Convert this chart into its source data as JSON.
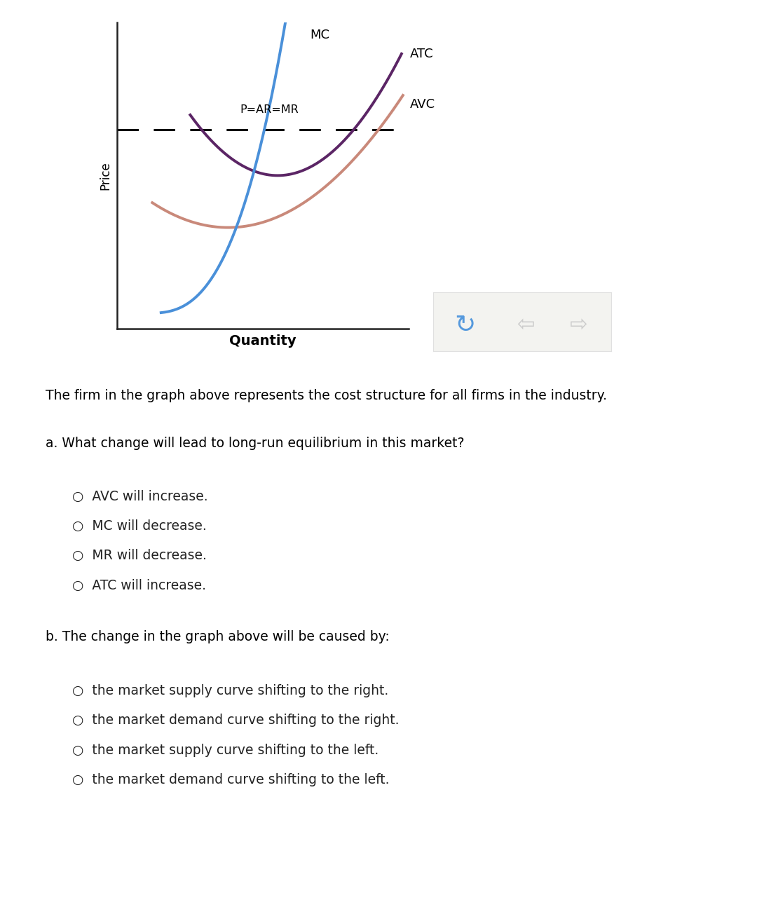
{
  "background_color": "#ffffff",
  "mc_color": "#4a90d9",
  "atc_color": "#5B2565",
  "avc_color": "#C9897A",
  "mr_color": "#000000",
  "ylabel": "Price",
  "xlabel": "Quantity",
  "question_text_1": "The firm in the graph above represents the cost structure for all firms in the industry.",
  "question_a": "a. What change will lead to long-run equilibrium in this market?",
  "options_a": [
    "AVC will increase.",
    "MC will decrease.",
    "MR will decrease.",
    "ATC will increase."
  ],
  "question_b": "b. The change in the graph above will be caused by:",
  "options_b": [
    "the market supply curve shifting to the right.",
    "the market demand curve shifting to the right.",
    "the market supply curve shifting to the left.",
    "the market demand curve shifting to the left."
  ],
  "text_fontsize": 14,
  "option_fontsize": 13
}
